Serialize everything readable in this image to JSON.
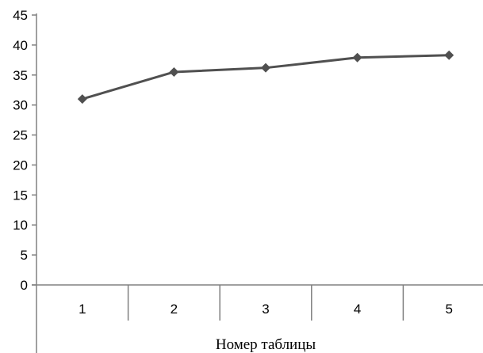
{
  "chart_data": {
    "type": "line",
    "categories": [
      "1",
      "2",
      "3",
      "4",
      "5"
    ],
    "series": [
      {
        "values": [
          31,
          35.5,
          36.2,
          37.9,
          38.3
        ]
      }
    ],
    "xlabel": "Номер таблицы",
    "ylabel": "",
    "title": "",
    "ylim": [
      0,
      45
    ],
    "yticks": [
      0,
      5,
      10,
      15,
      20,
      25,
      30,
      35,
      40,
      45
    ],
    "grid": false,
    "legend": "none",
    "colors": {
      "line": "#505050",
      "marker": "#505050",
      "axis": "#808080"
    }
  }
}
